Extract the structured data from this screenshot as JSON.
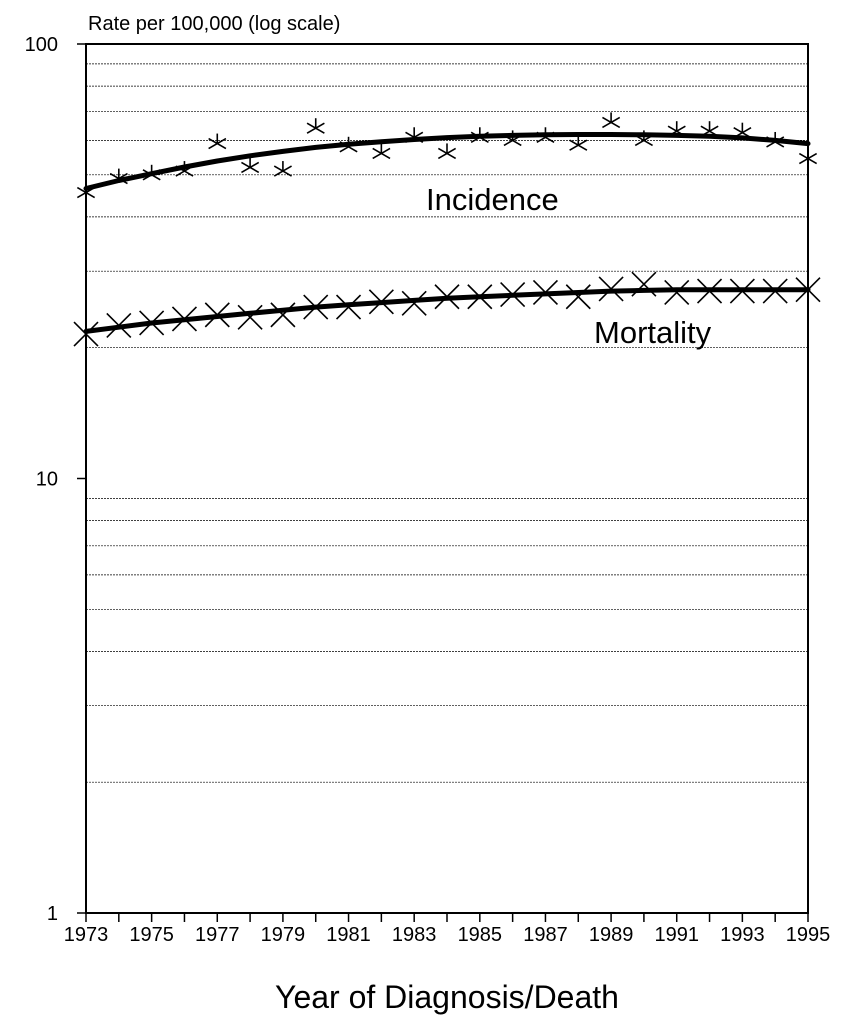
{
  "chart_data": {
    "type": "line",
    "ylabel": "Rate per 100,000 (log scale)",
    "xlabel": "Year of Diagnosis/Death",
    "y_scale": "log",
    "ylim": [
      1,
      100
    ],
    "xlim": [
      1973,
      1995
    ],
    "grid": true,
    "y_ticks": [
      "1",
      "10",
      "100"
    ],
    "x_ticks": [
      "1973",
      "1975",
      "1977",
      "1979",
      "1981",
      "1983",
      "1985",
      "1987",
      "1989",
      "1991",
      "1993",
      "1995"
    ],
    "x": [
      1973,
      1974,
      1975,
      1976,
      1977,
      1978,
      1979,
      1980,
      1981,
      1982,
      1983,
      1984,
      1985,
      1986,
      1987,
      1988,
      1989,
      1990,
      1991,
      1992,
      1993,
      1994,
      1995
    ],
    "series": [
      {
        "name": "Incidence",
        "marker": "asterisk",
        "values": [
          45.5,
          49,
          50,
          51,
          59,
          52,
          51,
          64,
          58,
          56,
          61,
          56,
          61,
          60,
          61,
          58.5,
          66,
          60,
          63,
          63,
          62.5,
          59.5,
          54.5
        ],
        "trend": [
          46.5,
          48.5,
          50.3,
          52.1,
          53.8,
          55.3,
          56.6,
          57.8,
          58.8,
          59.6,
          60.3,
          60.9,
          61.3,
          61.6,
          61.8,
          61.9,
          61.9,
          61.8,
          61.6,
          61.3,
          60.8,
          60.0,
          59.0
        ]
      },
      {
        "name": "Mortality",
        "marker": "x",
        "values": [
          21.5,
          22.5,
          22.8,
          23.3,
          23.8,
          23.5,
          23.8,
          24.8,
          24.8,
          25.5,
          25.3,
          26.2,
          26.2,
          26.5,
          26.8,
          26.2,
          27.3,
          28.0,
          26.8,
          27.0,
          27.0,
          27.0,
          27.2
        ],
        "trend": [
          21.8,
          22.3,
          22.8,
          23.2,
          23.6,
          24.0,
          24.4,
          24.8,
          25.1,
          25.4,
          25.7,
          26.0,
          26.2,
          26.4,
          26.6,
          26.8,
          27.0,
          27.1,
          27.2,
          27.2,
          27.2,
          27.2,
          27.2
        ]
      }
    ]
  }
}
